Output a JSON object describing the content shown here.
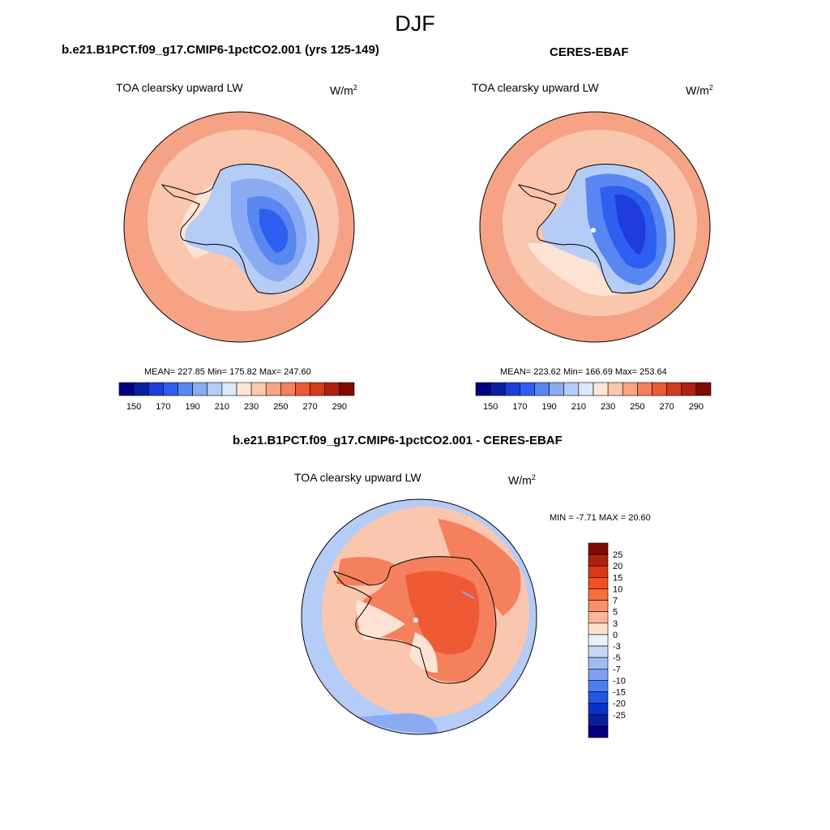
{
  "page": {
    "title": "DJF"
  },
  "panels": [
    {
      "id": "model",
      "title": "b.e21.B1PCT.f09_g17.CMIP6-1pctCO2.001 (yrs 125-149)",
      "variable": "TOA clearsky upward LW",
      "units_base": "W/m",
      "units_exp": "2",
      "stats": "MEAN= 227.85  Min= 175.82  Max= 247.60"
    },
    {
      "id": "obs",
      "title": "CERES-EBAF",
      "variable": "TOA clearsky upward LW",
      "units_base": "W/m",
      "units_exp": "2",
      "stats": "MEAN= 223.62  Min= 166.69  Max= 253.64"
    },
    {
      "id": "diff",
      "title": "b.e21.B1PCT.f09_g17.CMIP6-1pctCO2.001 - CERES-EBAF",
      "variable": "TOA clearsky upward LW",
      "units_base": "W/m",
      "units_exp": "2",
      "stats": "MIN =  -7.71 MAX =  20.60"
    }
  ],
  "colorbar_abs": {
    "colors": [
      "#00007f",
      "#0a1ea0",
      "#1e3ddc",
      "#2f5ff0",
      "#5a86f2",
      "#8aaaf2",
      "#b4ccf6",
      "#dce8fb",
      "#fde6d8",
      "#fbc8ae",
      "#f8a585",
      "#f5805e",
      "#ef5a35",
      "#d63a1a",
      "#b02010",
      "#800a00"
    ],
    "tick_labels": [
      "150",
      "170",
      "190",
      "210",
      "230",
      "250",
      "270",
      "290"
    ]
  },
  "colorbar_diff": {
    "colors": [
      "#800a00",
      "#b02010",
      "#d63a1a",
      "#f0501e",
      "#f5703f",
      "#f89068",
      "#fbb598",
      "#fde0cc",
      "#e8f0fc",
      "#c6d8f6",
      "#a0bcf2",
      "#7ea0f0",
      "#4d7ef0",
      "#2456e6",
      "#0a32c8",
      "#0a1ea0",
      "#00007f"
    ],
    "tick_labels": [
      "25",
      "20",
      "15",
      "10",
      "7",
      "5",
      "3",
      "0",
      "-3",
      "-5",
      "-7",
      "-10",
      "-15",
      "-20",
      "-25"
    ]
  },
  "map_colors": {
    "model": {
      "outer": "#f5a285",
      "mid": "#fbc6ae",
      "pale": "#fde3d4",
      "ice_edge": "#b4ccf6",
      "ice_mid": "#8aaaf2",
      "ice_core": "#5a86f2",
      "ice_deep": "#2f5ff0"
    },
    "obs": {
      "outer": "#f5a285",
      "mid": "#fbc6ae",
      "pale": "#fde3d4",
      "ice_edge": "#b4ccf6",
      "ice_mid": "#5a86f2",
      "ice_core": "#2f5ff0",
      "ice_deep": "#1e3ddc"
    },
    "diff": {
      "outer": "#b4ccf6",
      "mid": "#fbc6ae",
      "pale": "#fde3d4",
      "warm": "#f5805e",
      "hot": "#ef5a35",
      "blue2": "#8aaaf2"
    }
  }
}
